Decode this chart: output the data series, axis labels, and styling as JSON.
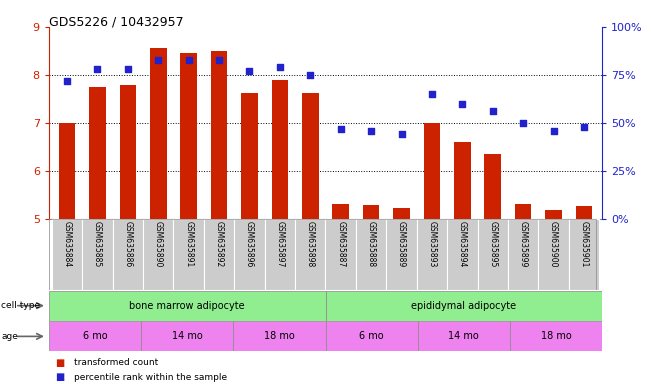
{
  "title": "GDS5226 / 10432957",
  "samples": [
    "GSM635884",
    "GSM635885",
    "GSM635886",
    "GSM635890",
    "GSM635891",
    "GSM635892",
    "GSM635896",
    "GSM635897",
    "GSM635898",
    "GSM635887",
    "GSM635888",
    "GSM635889",
    "GSM635893",
    "GSM635894",
    "GSM635895",
    "GSM635899",
    "GSM635900",
    "GSM635901"
  ],
  "bar_values": [
    7.0,
    7.75,
    7.78,
    8.55,
    8.45,
    8.5,
    7.62,
    7.9,
    7.62,
    5.3,
    5.28,
    5.22,
    7.0,
    6.6,
    6.35,
    5.3,
    5.18,
    5.27
  ],
  "blue_values": [
    72,
    78,
    78,
    83,
    83,
    83,
    77,
    79,
    75,
    47,
    46,
    44,
    65,
    60,
    56,
    50,
    46,
    48
  ],
  "ylim_left": [
    5,
    9
  ],
  "ylim_right": [
    0,
    100
  ],
  "yticks_left": [
    5,
    6,
    7,
    8,
    9
  ],
  "yticks_right": [
    0,
    25,
    50,
    75,
    100
  ],
  "ytick_labels_right": [
    "0%",
    "25%",
    "50%",
    "75%",
    "100%"
  ],
  "bar_color": "#cc2200",
  "blue_color": "#2222cc",
  "cell_type_groups": [
    "bone marrow adipocyte",
    "epididymal adipocyte"
  ],
  "cell_type_spans": [
    9,
    9
  ],
  "cell_type_color": "#90ee90",
  "age_groups": [
    "6 mo",
    "14 mo",
    "18 mo",
    "6 mo",
    "14 mo",
    "18 mo"
  ],
  "age_color": "#ee82ee",
  "legend_bar_label": "transformed count",
  "legend_blue_label": "percentile rank within the sample",
  "cell_type_label": "cell type",
  "age_label": "age",
  "background_color": "#ffffff",
  "tick_color_left": "#cc2200",
  "tick_color_right": "#2222cc",
  "sample_bg_color": "#cccccc"
}
